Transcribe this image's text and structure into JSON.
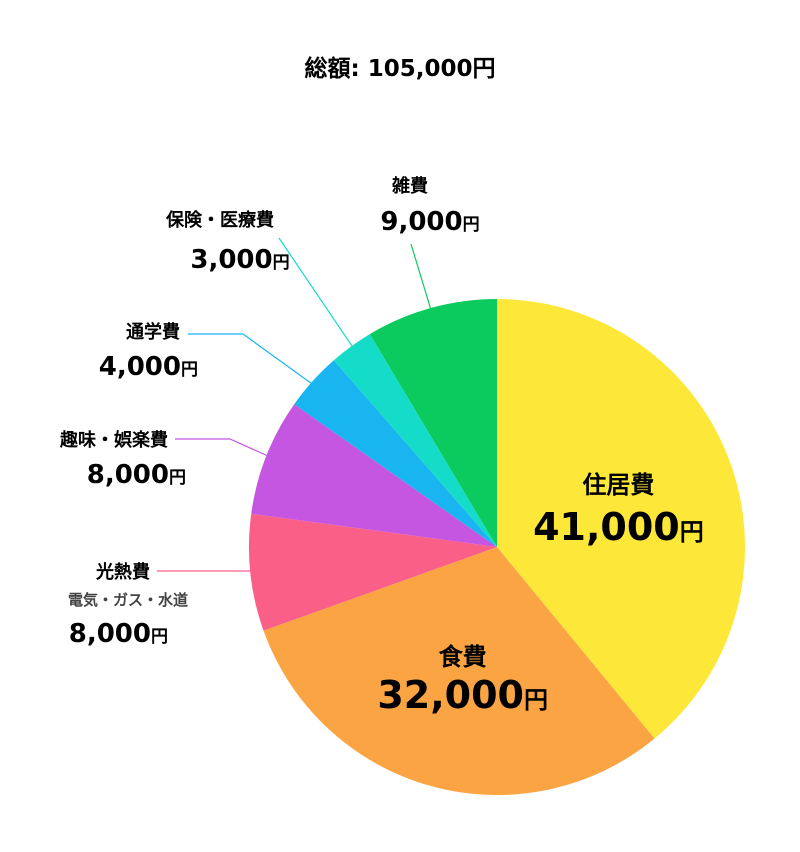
{
  "chart_data": {
    "type": "pie",
    "title": "総額: 105,000円",
    "currency": "円",
    "start": "12 o'clock",
    "direction": "clockwise",
    "slices": [
      {
        "label": "住居費",
        "value": 41000,
        "display": "41,000",
        "color": "#FDE83A"
      },
      {
        "label": "食費",
        "value": 32000,
        "display": "32,000",
        "color": "#FBA444"
      },
      {
        "label": "光熱費",
        "sublabel": "電気・ガス・水道",
        "value": 8000,
        "display": "8,000",
        "color": "#FA5F87"
      },
      {
        "label": "趣味・娯楽費",
        "value": 8000,
        "display": "8,000",
        "color": "#C456E2"
      },
      {
        "label": "通学費",
        "value": 4000,
        "display": "4,000",
        "color": "#18B5F0"
      },
      {
        "label": "保険・医療費",
        "value": 3000,
        "display": "3,000",
        "color": "#14DCC8"
      },
      {
        "label": "雑費",
        "value": 9000,
        "display": "9,000",
        "color": "#0CCB5E"
      }
    ]
  }
}
